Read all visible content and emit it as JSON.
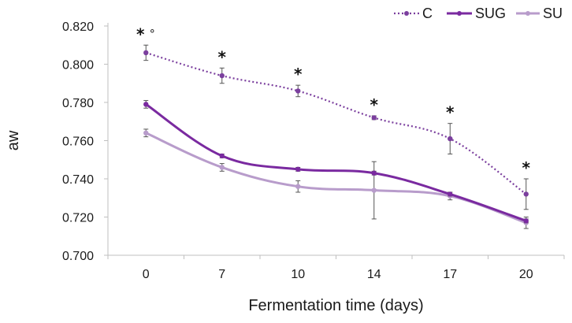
{
  "chart_data": {
    "type": "line",
    "title": "",
    "xlabel": "Fermentation time (days)",
    "ylabel": "aw",
    "categories": [
      "0",
      "7",
      "10",
      "14",
      "17",
      "20"
    ],
    "ylim": [
      0.7,
      0.82
    ],
    "yticks": [
      "0.700",
      "0.720",
      "0.740",
      "0.760",
      "0.780",
      "0.800",
      "0.820"
    ],
    "ytick_values": [
      0.7,
      0.72,
      0.74,
      0.76,
      0.78,
      0.8,
      0.82
    ],
    "grid": false,
    "legend_position": "top-right",
    "series": [
      {
        "name": "C",
        "style": "dotted",
        "color": "#7b3f9e",
        "values": [
          0.806,
          0.794,
          0.786,
          0.772,
          0.761,
          0.732
        ],
        "errors": [
          0.004,
          0.004,
          0.003,
          0.001,
          0.008,
          0.008
        ]
      },
      {
        "name": "SUG",
        "style": "solid",
        "color": "#7a2aa0",
        "values": [
          0.779,
          0.752,
          0.745,
          0.743,
          0.732,
          0.718
        ],
        "errors": [
          0.002,
          0.001,
          0.001,
          0.001,
          0.001,
          0.001
        ]
      },
      {
        "name": "SU",
        "style": "solid",
        "color": "#b89ccb",
        "values": [
          0.764,
          0.746,
          0.736,
          0.734,
          0.731,
          0.717
        ],
        "errors": [
          0.002,
          0.002,
          0.003,
          0.015,
          0.002,
          0.003
        ]
      }
    ],
    "annotations": [
      {
        "category_index": 0,
        "text": "*",
        "extra": "°"
      },
      {
        "category_index": 1,
        "text": "*"
      },
      {
        "category_index": 2,
        "text": "*"
      },
      {
        "category_index": 3,
        "text": "*"
      },
      {
        "category_index": 4,
        "text": "*"
      },
      {
        "category_index": 5,
        "text": "*"
      }
    ]
  }
}
